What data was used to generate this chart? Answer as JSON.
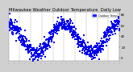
{
  "title": "Milwaukee Weather Outdoor Temperature  Daily Low",
  "title_fontsize": 3.8,
  "bg_color": "#d0d0d0",
  "plot_bg_color": "#ffffff",
  "dot_color": "#0000ee",
  "dot_size": 0.8,
  "legend_color": "#2222ff",
  "legend_label": "Outdoor Temp",
  "ylim": [
    -5,
    85
  ],
  "xlim": [
    0,
    730
  ],
  "ytick_labels": [
    "80",
    "60",
    "40",
    "20",
    "0"
  ],
  "ytick_values": [
    80,
    60,
    40,
    20,
    0
  ],
  "num_points": 730,
  "vline_positions": [
    73,
    146,
    219,
    292,
    365,
    438,
    511,
    584,
    657,
    730
  ],
  "seed": 12
}
